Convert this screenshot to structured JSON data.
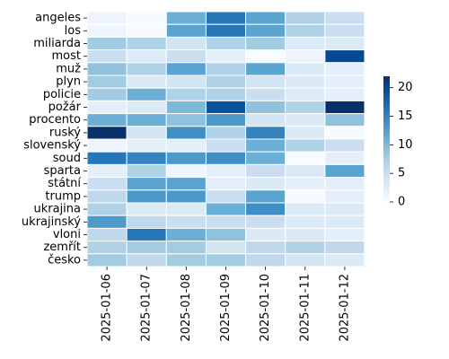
{
  "chart_data": {
    "type": "heatmap",
    "title": "",
    "xlabel": "",
    "ylabel": "",
    "x_categories": [
      "2025-01-06",
      "2025-01-07",
      "2025-01-08",
      "2025-01-09",
      "2025-01-10",
      "2025-01-11",
      "2025-01-12"
    ],
    "y_categories": [
      "angeles",
      "los",
      "miliarda",
      "most",
      "muž",
      "plyn",
      "policie",
      "požár",
      "procento",
      "ruský",
      "slovenský",
      "soud",
      "sparta",
      "státní",
      "trump",
      "ukrajina",
      "ukrajinský",
      "vloni",
      "zemřít",
      "česko"
    ],
    "values": [
      [
        1,
        0,
        11,
        16,
        12,
        7,
        5
      ],
      [
        1,
        0,
        12,
        16,
        12,
        7,
        5
      ],
      [
        8,
        7,
        4,
        7,
        8,
        3,
        3
      ],
      [
        5,
        3,
        5,
        2,
        0,
        1,
        20
      ],
      [
        9,
        7,
        12,
        7,
        12,
        3,
        2
      ],
      [
        8,
        3,
        4,
        7,
        4,
        3,
        2
      ],
      [
        8,
        11,
        7,
        7,
        5,
        3,
        2
      ],
      [
        2,
        3,
        10,
        19,
        9,
        7,
        22
      ],
      [
        11,
        11,
        9,
        13,
        4,
        3,
        9
      ],
      [
        22,
        4,
        14,
        7,
        15,
        3,
        0
      ],
      [
        1,
        2,
        2,
        5,
        11,
        7,
        5
      ],
      [
        16,
        15,
        13,
        14,
        11,
        0,
        2
      ],
      [
        2,
        7,
        1,
        2,
        5,
        3,
        12
      ],
      [
        5,
        12,
        12,
        2,
        3,
        2,
        2
      ],
      [
        6,
        13,
        13,
        5,
        12,
        0,
        2
      ],
      [
        7,
        3,
        3,
        11,
        14,
        3,
        3
      ],
      [
        13,
        6,
        5,
        5,
        5,
        3,
        3
      ],
      [
        6,
        16,
        11,
        9,
        3,
        3,
        2
      ],
      [
        7,
        8,
        8,
        4,
        6,
        7,
        6
      ],
      [
        8,
        6,
        8,
        8,
        6,
        4,
        3
      ]
    ],
    "colorbar": {
      "min": 0,
      "max": 22,
      "ticks": [
        0,
        5,
        10,
        15,
        20
      ]
    },
    "colormap": "Blues",
    "grid": true
  }
}
